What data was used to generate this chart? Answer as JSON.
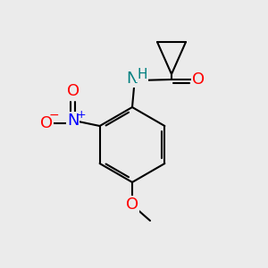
{
  "background_color": "#ebebeb",
  "bond_color": "#000000",
  "atom_colors": {
    "O": "#ff0000",
    "N_amide": "#008080",
    "N_nitro": "#0000ff",
    "H": "#008080",
    "C": "#000000"
  },
  "font_size_atoms": 13,
  "font_size_h": 11,
  "fig_bg": "#ebebeb"
}
